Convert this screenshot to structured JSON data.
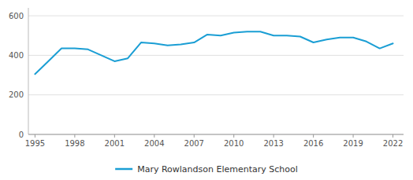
{
  "chart_data": {
    "type": "line",
    "x": [
      1995,
      1996,
      1997,
      1998,
      1999,
      2000,
      2001,
      2002,
      2003,
      2004,
      2005,
      2006,
      2007,
      2008,
      2009,
      2010,
      2011,
      2012,
      2013,
      2014,
      2015,
      2016,
      2017,
      2018,
      2019,
      2020,
      2021,
      2022
    ],
    "series": [
      {
        "name": "Mary Rowlandson Elementary School",
        "color": "#1a9ed4",
        "values": [
          305,
          370,
          435,
          435,
          430,
          400,
          370,
          385,
          465,
          460,
          450,
          455,
          465,
          505,
          500,
          515,
          520,
          520,
          500,
          500,
          495,
          465,
          480,
          490,
          490,
          470,
          435,
          460
        ]
      }
    ],
    "xlim": [
      1994.5,
      2022.8
    ],
    "xticks": [
      1995,
      1998,
      2001,
      2004,
      2007,
      2010,
      2013,
      2016,
      2019,
      2022
    ],
    "ylim": [
      0,
      640
    ],
    "yticks": [
      0,
      200,
      400,
      600
    ],
    "grid": true,
    "legend": "bottom"
  }
}
